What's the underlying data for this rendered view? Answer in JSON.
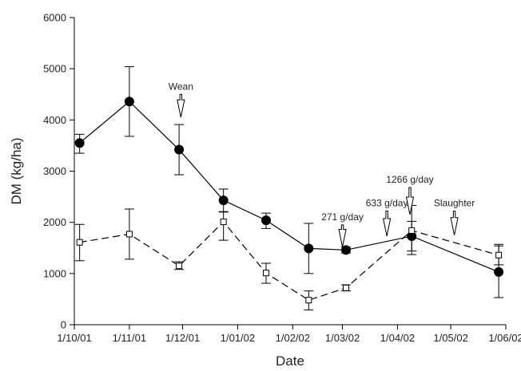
{
  "chart_data": {
    "type": "line",
    "xlabel": "Date",
    "ylabel": "DM (kg/ha)",
    "ylim": [
      0,
      6000
    ],
    "yticks": [
      "0",
      "1000",
      "2000",
      "3000",
      "4000",
      "5000",
      "6000"
    ],
    "xlim": [
      "2001-10-01",
      "2002-06-01"
    ],
    "xticks": [
      {
        "label": "1/10/01",
        "date": "2001-10-01"
      },
      {
        "label": "1/11/01",
        "date": "2001-11-01"
      },
      {
        "label": "1/12/01",
        "date": "2001-12-01"
      },
      {
        "label": "1/01/02",
        "date": "2002-01-01"
      },
      {
        "label": "1/02/02",
        "date": "2002-02-01"
      },
      {
        "label": "1/03/02",
        "date": "2002-03-01"
      },
      {
        "label": "1/04/02",
        "date": "2002-04-01"
      },
      {
        "label": "1/05/02",
        "date": "2002-05-01"
      },
      {
        "label": "1/06/02",
        "date": "2002-06-01"
      }
    ],
    "grid": false,
    "legend": "none",
    "series": [
      {
        "marker": "filled-circle",
        "line": "solid",
        "color": "#000000",
        "points": [
          {
            "x": "2001-10-04",
            "y": 3550,
            "err_low": 3350,
            "err_high": 3720
          },
          {
            "x": "2001-11-01",
            "y": 4360,
            "err_low": 3680,
            "err_high": 5040
          },
          {
            "x": "2001-11-29",
            "y": 3420,
            "err_low": 2930,
            "err_high": 3910
          },
          {
            "x": "2001-12-24",
            "y": 2430,
            "err_low": 2210,
            "err_high": 2650
          },
          {
            "x": "2002-01-17",
            "y": 2040,
            "err_low": 1880,
            "err_high": 2180
          },
          {
            "x": "2002-02-10",
            "y": 1490,
            "err_low": 1000,
            "err_high": 1980
          },
          {
            "x": "2002-03-03",
            "y": 1460,
            "err_low": 1400,
            "err_high": 1520
          },
          {
            "x": "2002-04-09",
            "y": 1730,
            "err_low": 1370,
            "err_high": 2330
          },
          {
            "x": "2002-05-28",
            "y": 1030,
            "err_low": 530,
            "err_high": 1540
          }
        ]
      },
      {
        "marker": "open-square",
        "line": "dashed",
        "color": "#000000",
        "points": [
          {
            "x": "2001-10-04",
            "y": 1610,
            "err_low": 1250,
            "err_high": 1960
          },
          {
            "x": "2001-11-01",
            "y": 1770,
            "err_low": 1280,
            "err_high": 2260
          },
          {
            "x": "2001-11-29",
            "y": 1150,
            "err_low": 1080,
            "err_high": 1230
          },
          {
            "x": "2001-12-24",
            "y": 2010,
            "err_low": 1650,
            "err_high": 2200
          },
          {
            "x": "2002-01-17",
            "y": 1010,
            "err_low": 810,
            "err_high": 1200
          },
          {
            "x": "2002-02-10",
            "y": 480,
            "err_low": 290,
            "err_high": 660
          },
          {
            "x": "2002-03-03",
            "y": 720,
            "err_low": 660,
            "err_high": 780
          },
          {
            "x": "2002-04-09",
            "y": 1840,
            "err_low": 1440,
            "err_high": 2020
          },
          {
            "x": "2002-05-28",
            "y": 1360,
            "err_low": 1170,
            "err_high": 1570
          }
        ]
      }
    ],
    "annotations": [
      {
        "text": "Wean",
        "x": "2001-11-30",
        "y_tip": 4050,
        "y_top": 4500
      },
      {
        "text": "271 g/day",
        "x": "2002-03-01",
        "y_tip": 1520,
        "y_top": 1950
      },
      {
        "text": "633 g/day",
        "x": "2002-03-26",
        "y_tip": 1730,
        "y_top": 2220
      },
      {
        "text": "1266 g/day",
        "x": "2002-04-08",
        "y_tip": 2150,
        "y_top": 2680
      },
      {
        "text": "Slaughter",
        "x": "2002-05-03",
        "y_tip": 1750,
        "y_top": 2220
      }
    ]
  }
}
